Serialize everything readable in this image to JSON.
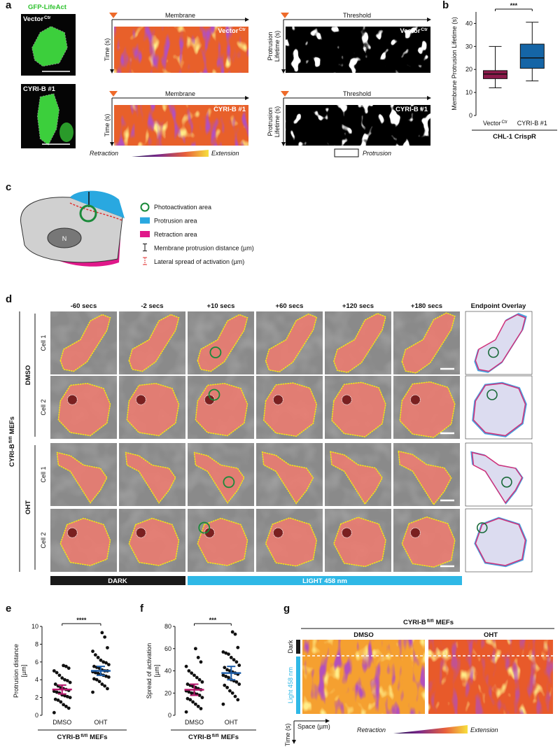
{
  "letters": [
    "a",
    "b",
    "c",
    "d",
    "e",
    "f",
    "g"
  ],
  "a": {
    "stain": "GFP-LifeAct",
    "rows": [
      {
        "cell": {
          "text": "Vector",
          "sup": "Ctr"
        }
      },
      {
        "cell": {
          "text": "CYRI-B #1"
        }
      }
    ],
    "membrane": "Membrane",
    "time": "Time (s)",
    "threshold": "Threshold",
    "lifetime": [
      "Protrusion",
      "Lifetime (s)"
    ],
    "retraction": "Retraction",
    "extension": "Extension",
    "protrusion": "Protrusion"
  },
  "c": {
    "nucleus": "N",
    "legend": [
      "Photoactivation area",
      "Protrusion area",
      "Retraction area",
      "Membrane protrusion distance (µm)",
      "Lateral spread of activation (µm)"
    ]
  },
  "d": {
    "timepoints": [
      "-60 secs",
      "-2 secs",
      "+10 secs",
      "+60 secs",
      "+120 secs",
      "+180 secs"
    ],
    "overlay": "Endpoint Overlay",
    "side": {
      "text": "CYRI-B",
      "sup": "fl/fl",
      "after": "MEFs"
    },
    "groups": [
      {
        "name": "DMSO",
        "cells": [
          "Cell 1",
          "Cell 2"
        ]
      },
      {
        "name": "OHT",
        "cells": [
          "Cell 1",
          "Cell 2"
        ]
      }
    ],
    "dark": "DARK",
    "light": "LIGHT 458 nm"
  },
  "g": {
    "title": {
      "text": "CYRI-B",
      "sup": "fl/fl",
      "after": "MEFs"
    },
    "panels": [
      "DMSO",
      "OHT"
    ],
    "dark": "Dark",
    "light": "Light 458 nm",
    "space": "Space (µm)",
    "time": "Time (s)",
    "retraction": "Retraction",
    "extension": "Extension"
  },
  "chart_data": [
    {
      "type": "box",
      "ylabel": "Membrane Protrusion Lifetime (s)",
      "significance": "***",
      "group_label": "CHL-1 CrispR",
      "ylim": [
        0,
        45
      ],
      "yticks": [
        0,
        10,
        20,
        30,
        40
      ],
      "series": [
        {
          "name": {
            "text": "Vector",
            "sup": "Ctr"
          },
          "color": "#8b1a4a",
          "whisker_low": 12,
          "q1": 16,
          "median": 18,
          "q3": 19.5,
          "whisker_high": 30
        },
        {
          "name": {
            "text": "CYRI-B #1"
          },
          "color": "#1565a6",
          "whisker_low": 15,
          "q1": 20.5,
          "median": 25,
          "q3": 31,
          "whisker_high": 40.5
        }
      ]
    },
    {
      "type": "dot",
      "ylabel": [
        "Protrusion distance",
        "[µm]"
      ],
      "significance": "****",
      "group_label": {
        "text": "CYRI-B",
        "sup": "fl/fl",
        "after": "MEFs"
      },
      "ylim": [
        0,
        10
      ],
      "yticks": [
        0,
        2,
        4,
        6,
        8,
        10
      ],
      "series": [
        {
          "name": "DMSO",
          "color": "#b5176b",
          "mean": 2.9,
          "error": 0.5,
          "values": [
            0.3,
            0.8,
            1.0,
            1.2,
            1.5,
            1.7,
            1.8,
            2.0,
            2.1,
            2.2,
            2.3,
            2.5,
            2.6,
            2.7,
            2.8,
            2.9,
            3.0,
            3.1,
            3.3,
            3.5,
            3.7,
            3.9,
            4.0,
            4.2,
            4.5,
            4.8,
            5.0,
            5.3,
            5.5,
            5.6
          ]
        },
        {
          "name": "OHT",
          "color": "#1f5ea8",
          "mean": 5.0,
          "error": 0.5,
          "values": [
            2.6,
            3.0,
            3.3,
            3.5,
            3.8,
            4.0,
            4.1,
            4.3,
            4.4,
            4.5,
            4.6,
            4.7,
            4.8,
            4.9,
            5.0,
            5.0,
            5.1,
            5.3,
            5.4,
            5.5,
            5.7,
            5.9,
            6.0,
            6.2,
            6.5,
            6.8,
            7.2,
            7.6,
            8.8,
            9.3
          ]
        }
      ]
    },
    {
      "type": "dot",
      "ylabel": [
        "Spread of activation",
        "[µm]"
      ],
      "significance": "***",
      "group_label": {
        "text": "CYRI-B",
        "sup": "fl/fl",
        "after": "MEFs"
      },
      "ylim": [
        0,
        80
      ],
      "yticks": [
        0,
        20,
        40,
        60,
        80
      ],
      "series": [
        {
          "name": "DMSO",
          "color": "#b5176b",
          "mean": 23,
          "error": 5,
          "values": [
            3,
            6,
            8,
            10,
            12,
            14,
            15,
            16,
            18,
            19,
            20,
            20,
            21,
            22,
            23,
            24,
            25,
            26,
            27,
            28,
            30,
            32,
            34,
            36,
            38,
            40,
            44,
            48,
            52,
            60
          ]
        },
        {
          "name": "OHT",
          "color": "#1f5ea8",
          "mean": 38,
          "error": 6,
          "values": [
            10,
            14,
            17,
            20,
            22,
            25,
            27,
            28,
            30,
            31,
            32,
            34,
            35,
            36,
            37,
            38,
            39,
            40,
            41,
            43,
            45,
            48,
            50,
            52,
            55,
            56,
            57,
            61,
            73,
            75
          ]
        }
      ]
    }
  ]
}
